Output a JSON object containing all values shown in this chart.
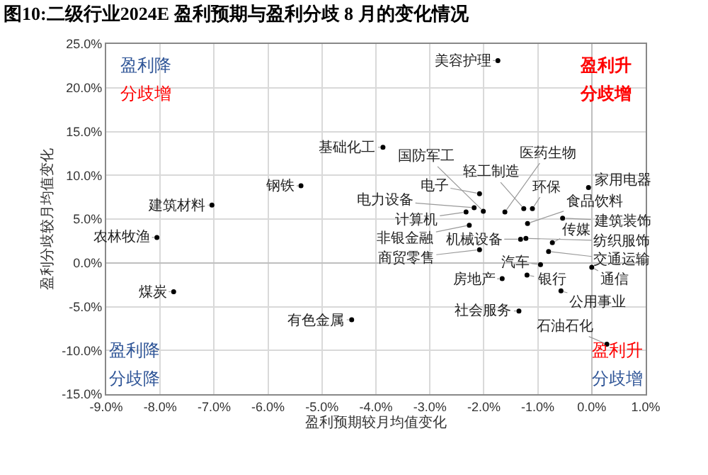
{
  "chart_data": {
    "type": "scatter",
    "title": "图10:二级行业2024E 盈利预期与盈利分歧 8 月的变化情况",
    "xlabel": "盈利预期较月均值变化",
    "ylabel": "盈利分歧较月均值变化",
    "series": [
      {
        "color": "#000000",
        "x": [
          -3.87,
          -5.39,
          -7.04,
          -8.06,
          -7.75,
          -4.45,
          -1.74,
          -0.06,
          -2.08,
          -1.26,
          -2.01,
          -2.33,
          -1.61,
          -1.1,
          -0.54,
          -1.19,
          -2.18,
          -2.27,
          -1.32,
          -1.22,
          -0.73,
          -0.8,
          -2.08,
          -0.95,
          0.0,
          -1.2,
          -1.66,
          -0.57,
          -1.35,
          0.28
        ],
        "values": [
          13.2,
          8.8,
          6.6,
          2.9,
          -3.3,
          -6.5,
          23.1,
          8.6,
          7.9,
          6.2,
          5.9,
          5.8,
          5.8,
          6.2,
          5.1,
          4.5,
          6.3,
          4.3,
          2.7,
          2.8,
          2.3,
          1.3,
          1.5,
          -0.2,
          -0.5,
          -1.4,
          -1.8,
          -3.2,
          -5.5,
          -9.3
        ],
        "value_labels": [
          "基础化工",
          "钢铁",
          "建筑材料",
          "农林牧渔",
          "煤炭",
          "有色金属",
          "美容护理",
          "家用电器",
          "电子",
          "轻工制造",
          "国防军工",
          "计算机",
          "医药生物",
          "环保",
          "建筑装饰",
          "食品饮料",
          "电力设备",
          "非银金融",
          "机械设备",
          "纺织服饰",
          "传媒",
          "交通运输",
          "商贸零售",
          "汽车",
          "通信",
          "银行",
          "房地产",
          "公用事业",
          "社会服务",
          "石油石化"
        ]
      }
    ],
    "xlim": [
      -9,
      1
    ],
    "xticks": [
      {
        "value": -9,
        "label": "-9.0%"
      },
      {
        "value": -8,
        "label": "-8.0%"
      },
      {
        "value": -7,
        "label": "-7.0%"
      },
      {
        "value": -6,
        "label": "-6.0%"
      },
      {
        "value": -5,
        "label": "-5.0%"
      },
      {
        "value": -4,
        "label": "-4.0%"
      },
      {
        "value": -3,
        "label": "-3.0%"
      },
      {
        "value": -2,
        "label": "-2.0%"
      },
      {
        "value": -1,
        "label": "-1.0%"
      },
      {
        "value": 0,
        "label": "0.0%"
      },
      {
        "value": 1,
        "label": "1.0%"
      }
    ],
    "ylim": [
      -15,
      25
    ],
    "yticks": [
      {
        "value": -15,
        "label": "-15.0%"
      },
      {
        "value": -10,
        "label": "-10.0%"
      },
      {
        "value": -5,
        "label": "-5.0%"
      },
      {
        "value": 0,
        "label": "0.0%"
      },
      {
        "value": 5,
        "label": "5.0%"
      },
      {
        "value": 10,
        "label": "10.0%"
      },
      {
        "value": 15,
        "label": "15.0%"
      },
      {
        "value": 20,
        "label": "20.0%"
      },
      {
        "value": 25,
        "label": "25.0%"
      }
    ],
    "grid": true,
    "marker": "circle",
    "annotations": [
      "盈利降",
      "分歧增",
      "盈利升",
      "分歧增",
      "盈利降",
      "分歧降",
      "盈利升",
      "分歧增"
    ]
  }
}
